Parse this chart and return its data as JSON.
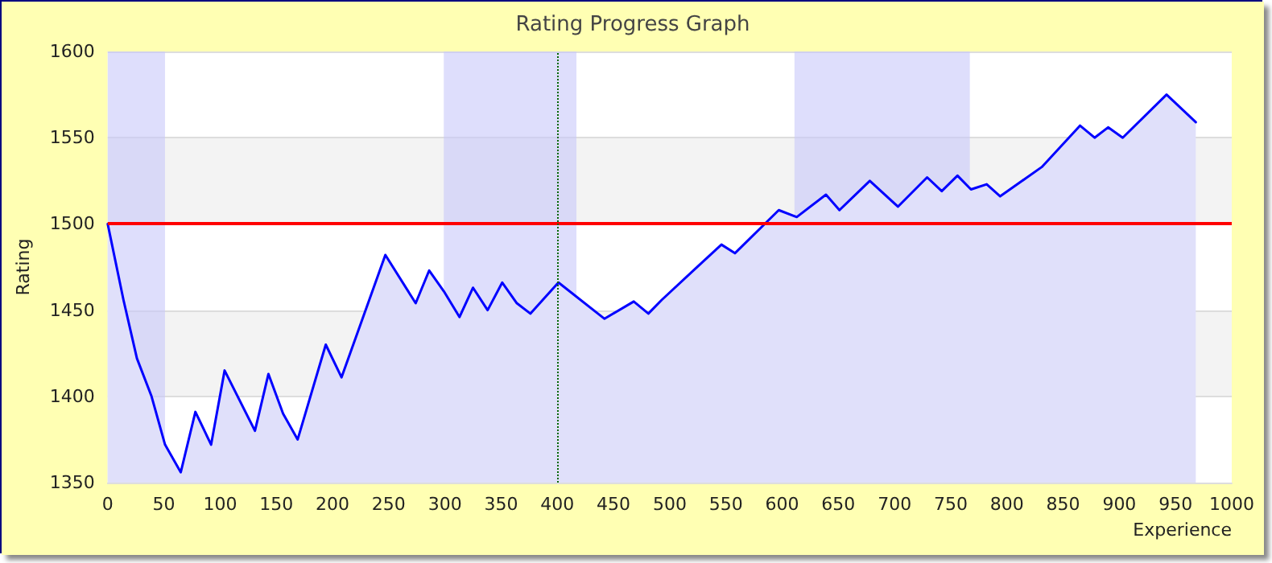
{
  "chart_data": {
    "type": "area",
    "title": "Rating Progress Graph",
    "xlabel": "Experience",
    "ylabel": "Rating",
    "x": [
      0,
      14,
      26,
      39,
      51,
      65,
      78,
      92,
      104,
      131,
      143,
      156,
      169,
      194,
      208,
      247,
      274,
      286,
      299,
      313,
      325,
      338,
      351,
      364,
      376,
      401,
      442,
      468,
      481,
      493,
      521,
      546,
      558,
      597,
      613,
      639,
      651,
      678,
      703,
      729,
      742,
      756,
      768,
      782,
      794,
      831,
      865,
      878,
      890,
      903,
      942,
      968
    ],
    "series": [
      {
        "color": "#0000ff",
        "values": [
          1500,
          1456,
          1422,
          1400,
          1372,
          1356,
          1391,
          1372,
          1415,
          1380,
          1413,
          1390,
          1375,
          1430,
          1411,
          1482,
          1454,
          1473,
          1461,
          1446,
          1463,
          1450,
          1466,
          1454,
          1448,
          1466,
          1445,
          1455,
          1448,
          1456,
          1473,
          1488,
          1483,
          1508,
          1504,
          1517,
          1508,
          1525,
          1510,
          1527,
          1519,
          1528,
          1520,
          1523,
          1516,
          1533,
          1557,
          1550,
          1556,
          1550,
          1575,
          1559
        ]
      }
    ],
    "xlim": [
      0,
      1000
    ],
    "xticks": [
      0,
      50,
      100,
      150,
      200,
      250,
      300,
      350,
      400,
      450,
      500,
      550,
      600,
      650,
      700,
      750,
      800,
      850,
      900,
      950,
      1000
    ],
    "ylim": [
      1350,
      1600
    ],
    "yticks": [
      1350,
      1400,
      1450,
      1500,
      1550,
      1600
    ],
    "grid": "y",
    "marker": "none",
    "line_style": "solid",
    "ref_lines": [
      {
        "axis": "y",
        "value": 1500,
        "color": "#ff0000",
        "line_style": "solid"
      },
      {
        "axis": "x",
        "value": 400,
        "color": "#006600",
        "line_style": "dotted"
      }
    ],
    "bands": [
      {
        "axis": "x",
        "from": 0,
        "to": 51,
        "color": "#c8c8fa"
      },
      {
        "axis": "x",
        "from": 299,
        "to": 417,
        "color": "#c8c8fa"
      },
      {
        "axis": "x",
        "from": 611,
        "to": 767,
        "color": "#c8c8fa"
      }
    ]
  }
}
